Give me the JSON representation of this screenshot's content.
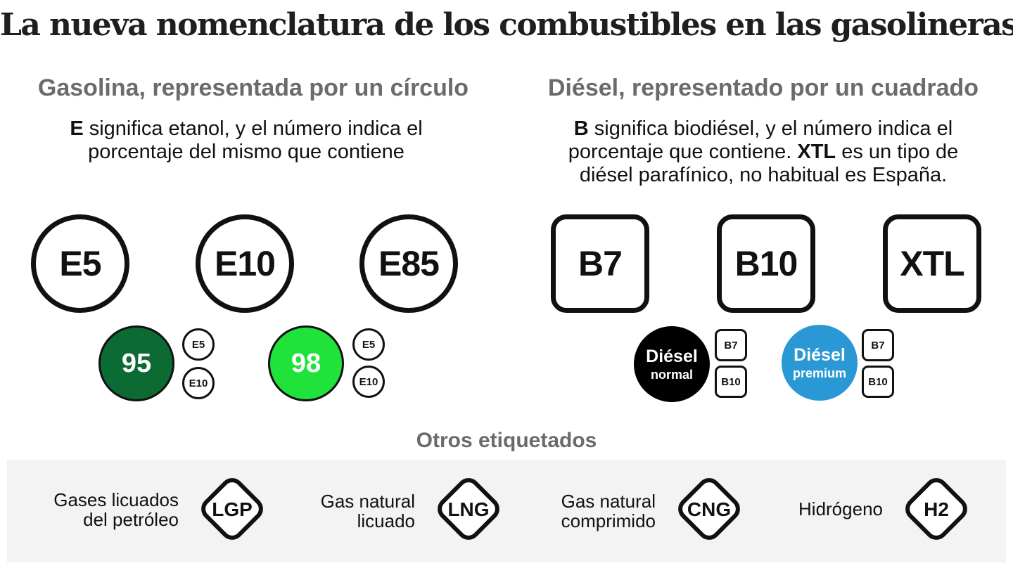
{
  "title": "La nueva nomenclatura de los combustibles en las gasolineras",
  "gasoline": {
    "heading": "Gasolina, representada por un círculo",
    "desc_bold": "E",
    "desc_rest1": " significa etanol, y el número indica el",
    "desc_line2": "porcentaje del mismo que contiene",
    "labels": [
      "E5",
      "E10",
      "E85"
    ],
    "pumps": [
      {
        "number": "95",
        "color": "#0c6b33",
        "compatible": [
          "E5",
          "E10"
        ]
      },
      {
        "number": "98",
        "color": "#1fe33a",
        "compatible": [
          "E5",
          "E10"
        ]
      }
    ]
  },
  "diesel": {
    "heading": "Diésel, representado por un cuadrado",
    "desc_bold1": "B",
    "desc_rest1": " significa biodiésel, y el número indica el",
    "desc_line2a": "porcentaje que contiene. ",
    "desc_bold2": "XTL",
    "desc_line2b": " es un tipo de",
    "desc_line3": "diésel parafínico, no habitual es España.",
    "labels": [
      "B7",
      "B10",
      "XTL"
    ],
    "pumps": [
      {
        "line1": "Diésel",
        "line2": "normal",
        "color": "#000000",
        "compatible": [
          "B7",
          "B10"
        ]
      },
      {
        "line1": "Diésel",
        "line2": "premium",
        "color": "#2a98d4",
        "compatible": [
          "B7",
          "B10"
        ]
      }
    ]
  },
  "others": {
    "heading": "Otros etiquetados",
    "items": [
      {
        "label_line1": "Gases licuados",
        "label_line2": "del petróleo",
        "code": "LGP"
      },
      {
        "label_line1": "Gas natural",
        "label_line2": "licuado",
        "code": "LNG"
      },
      {
        "label_line1": "Gas natural",
        "label_line2": "comprimido",
        "code": "CNG"
      },
      {
        "label_line1": "Hidrógeno",
        "label_line2": "",
        "code": "H2"
      }
    ]
  }
}
